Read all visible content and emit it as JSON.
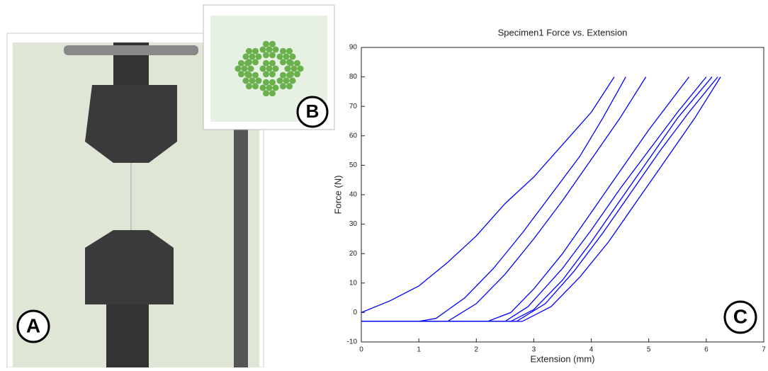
{
  "panel_labels": [
    "A",
    "B",
    "C"
  ],
  "chart_data": {
    "type": "line",
    "title": "Specimen1 Force vs. Extension",
    "x_label": "Extension (mm)",
    "y_label": "Force (N)",
    "xlim": [
      0,
      7
    ],
    "ylim": [
      -10,
      90
    ],
    "xticks": [
      0,
      1,
      2,
      3,
      4,
      5,
      6,
      7
    ],
    "yticks": [
      -10,
      0,
      10,
      20,
      30,
      40,
      50,
      60,
      70,
      80,
      90
    ],
    "grid": false,
    "series": [
      {
        "color": "#0000ff",
        "x": [
          0,
          0.5,
          1,
          1.5,
          2,
          2.5,
          3,
          3.5,
          4,
          4.4
        ],
        "values": [
          0,
          4,
          9,
          17,
          26,
          37,
          46,
          57,
          68,
          80
        ]
      },
      {
        "color": "#0000ff",
        "x": [
          0,
          1,
          1.3,
          1.8,
          2.3,
          2.8,
          3.3,
          3.8,
          4.2,
          4.6
        ],
        "values": [
          -3,
          -3,
          -2,
          5,
          15,
          27,
          40,
          53,
          66,
          80
        ]
      },
      {
        "color": "#0000ff",
        "x": [
          0,
          1.5,
          2,
          2.5,
          3,
          3.5,
          4,
          4.5,
          4.95
        ],
        "values": [
          -3,
          -3,
          3,
          13,
          25,
          38,
          52,
          66,
          80
        ]
      },
      {
        "color": "#0000ff",
        "x": [
          0,
          2.2,
          2.6,
          3,
          3.5,
          4,
          4.5,
          5,
          5.7
        ],
        "values": [
          -3,
          -3,
          0,
          8,
          20,
          34,
          48,
          62,
          80
        ]
      },
      {
        "color": "#0000ff",
        "x": [
          0,
          2.5,
          2.9,
          3.5,
          4,
          4.5,
          5,
          5.5,
          6
        ],
        "values": [
          -3,
          -3,
          2,
          15,
          28,
          42,
          55,
          68,
          80
        ]
      },
      {
        "color": "#0000ff",
        "x": [
          0,
          2.6,
          3,
          3.5,
          4,
          4.5,
          5,
          5.5,
          6.1
        ],
        "values": [
          -3,
          -3,
          1,
          11,
          24,
          38,
          52,
          66,
          80
        ]
      },
      {
        "color": "#0000ff",
        "x": [
          0,
          2.7,
          3.2,
          3.7,
          4.2,
          4.7,
          5.2,
          5.7,
          6.2
        ],
        "values": [
          -3,
          -3,
          3,
          14,
          27,
          41,
          55,
          68,
          80
        ]
      },
      {
        "color": "#0000ff",
        "x": [
          0,
          2.8,
          3.3,
          3.8,
          4.3,
          4.8,
          5.3,
          5.8,
          6.25
        ],
        "values": [
          -3,
          -3,
          2,
          12,
          24,
          38,
          52,
          66,
          80
        ]
      }
    ]
  }
}
